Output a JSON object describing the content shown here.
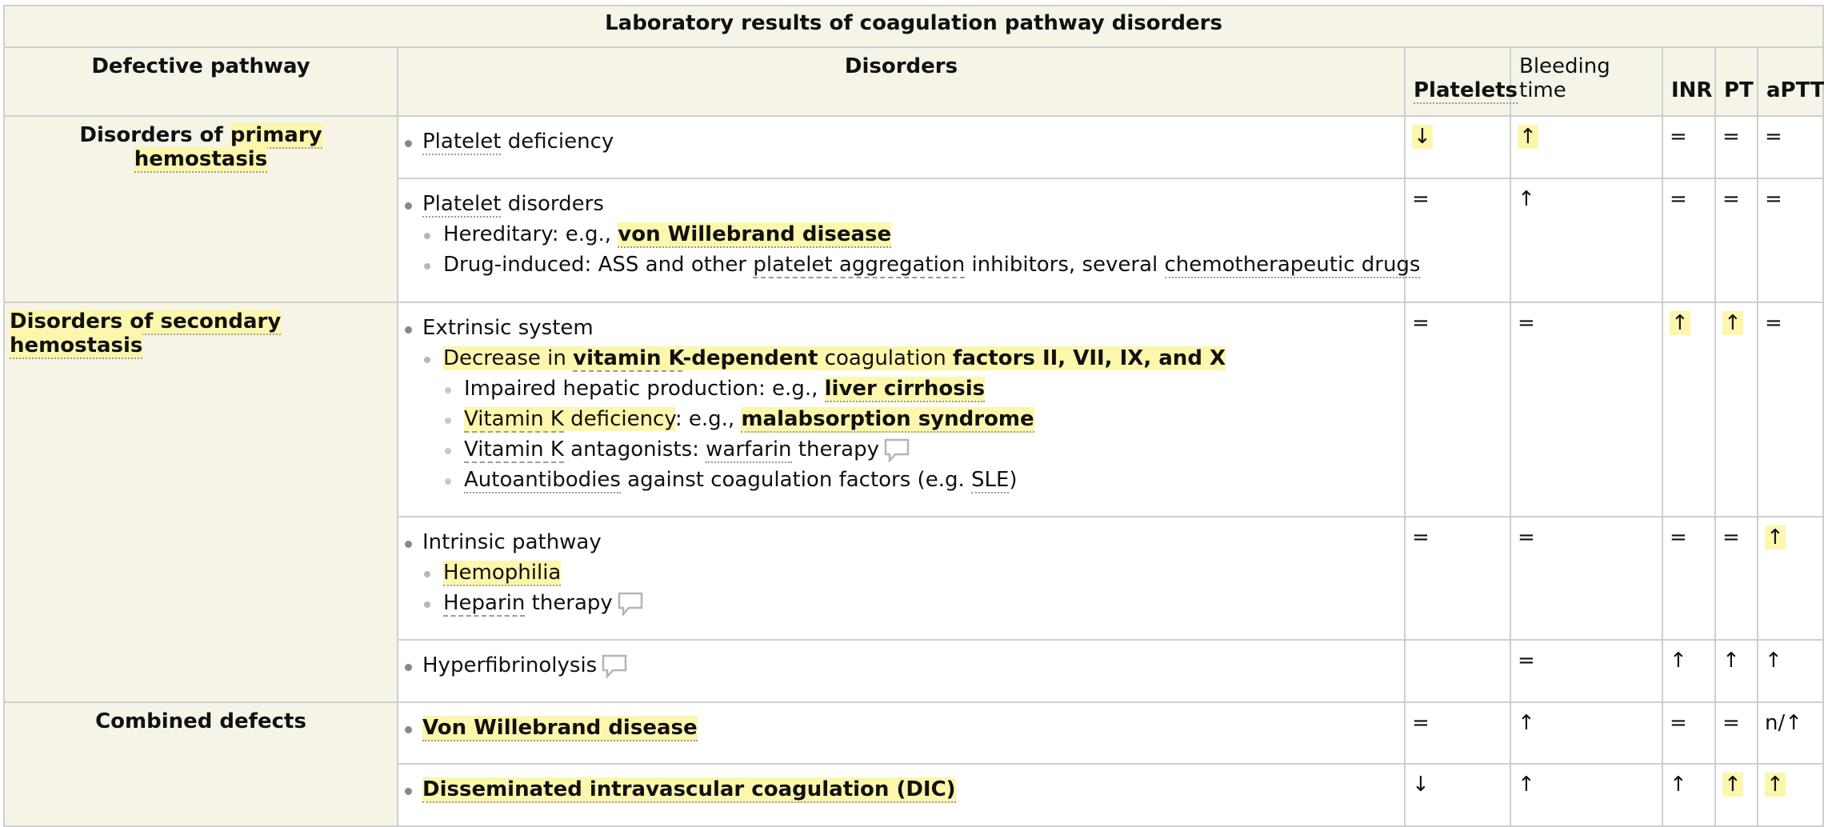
{
  "title": "Laboratory results of coagulation pathway disorders",
  "headers": {
    "pathway": "Defective pathway",
    "disorders": "Disorders",
    "platelets": "Platelets",
    "bleeding_time": "Bleeding time",
    "inr": "INR",
    "pt": "PT",
    "aptt": "aPTT"
  },
  "groups": {
    "primary": {
      "prefix": "Disorders of ",
      "highlight": "primary hemostasis"
    },
    "secondary": {
      "label": "Disorders of secondary hemostasis"
    },
    "combined": {
      "label": "Combined defects"
    }
  },
  "rows": {
    "r1": {
      "item": {
        "a": "Platelet",
        "b": " deficiency"
      },
      "values": {
        "platelets": "↓",
        "bleeding_time": "↑",
        "inr": "=",
        "pt": "=",
        "aptt": "="
      }
    },
    "r2": {
      "item": {
        "a": "Platelet",
        "b": " disorders"
      },
      "sub1": {
        "a": "Hereditary: e.g., ",
        "b": "von Willebrand disease"
      },
      "sub2": {
        "a": "Drug-induced: ASS and other ",
        "b": "platelet aggregation",
        "c": " inhibitors, several ",
        "d": "chemotherapeutic drugs"
      },
      "values": {
        "platelets": "=",
        "bleeding_time": "↑",
        "inr": "=",
        "pt": "=",
        "aptt": "="
      }
    },
    "r3": {
      "item": "Extrinsic system",
      "sub1": {
        "a": "Decrease in ",
        "b": "vitamin K",
        "c": "-dependent",
        "d": " coagulation ",
        "e": "factors II, VII, IX, and X"
      },
      "s1": {
        "a": "Impaired hepatic production: e.g., ",
        "b": "liver cirrhosis"
      },
      "s2": {
        "a": "Vitamin K",
        "b": " deficiency",
        "c": ": e.g., ",
        "d": "malabsorption syndrome"
      },
      "s3": {
        "a": "Vitamin K",
        "b": " antagonists: ",
        "c": "warfarin",
        "d": " therapy"
      },
      "s4": {
        "a": "Autoantibodies",
        "b": " against coagulation factors (e.g. ",
        "c": "SLE",
        "d": ")"
      },
      "values": {
        "platelets": "=",
        "bleeding_time": "=",
        "inr": "↑",
        "pt": "↑",
        "aptt": "="
      }
    },
    "r4": {
      "item": "Intrinsic pathway",
      "sub1": "Hemophilia",
      "sub2": {
        "a": "Heparin",
        "b": " therapy"
      },
      "values": {
        "platelets": "=",
        "bleeding_time": "=",
        "inr": "=",
        "pt": "=",
        "aptt": "↑"
      }
    },
    "r5": {
      "item": "Hyperfibrinolysis",
      "values": {
        "platelets": "",
        "bleeding_time": "=",
        "inr": "↑",
        "pt": "↑",
        "aptt": "↑"
      }
    },
    "r6": {
      "item": "Von Willebrand disease",
      "values": {
        "platelets": "=",
        "bleeding_time": "↑",
        "inr": "=",
        "pt": "=",
        "aptt": "n/↑"
      }
    },
    "r7": {
      "item": "Disseminated intravascular coagulation (DIC)",
      "values": {
        "platelets": "↓",
        "bleeding_time": "↑",
        "inr": "↑",
        "pt": "↑",
        "aptt": "↑"
      }
    }
  },
  "colors": {
    "header_bg": "#f5f4e7",
    "highlight": "#fdf6ad",
    "border": "#cfcfcf"
  },
  "icons": {
    "comment": "comment-bubble-icon"
  }
}
